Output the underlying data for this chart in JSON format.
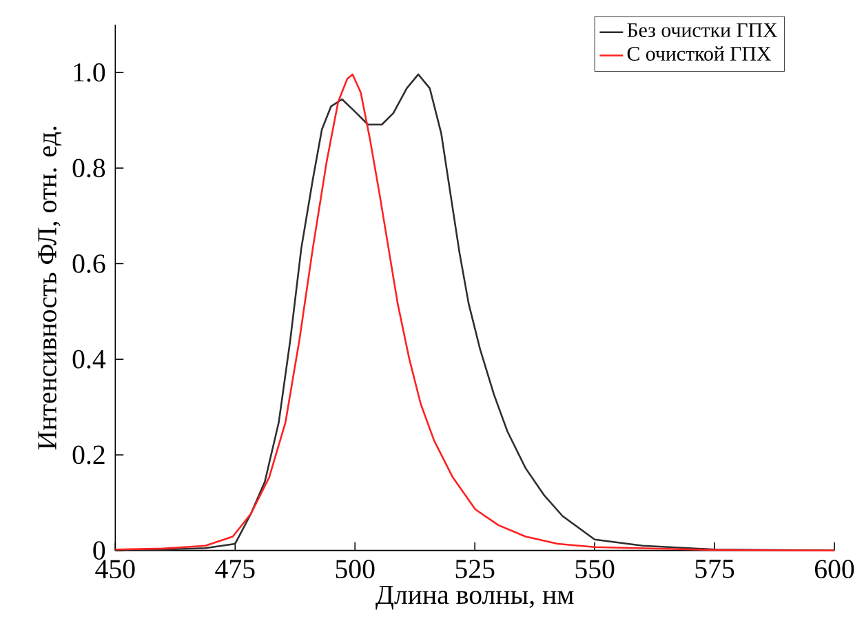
{
  "chart_data": {
    "type": "line",
    "xlabel": "Длина волны, нм",
    "ylabel": "Интенсивность ФЛ, отн. ед.",
    "xlim": [
      450,
      600
    ],
    "ylim": [
      0,
      1.1
    ],
    "xticks": [
      450,
      475,
      500,
      525,
      550,
      575,
      600
    ],
    "yticks": [
      0,
      0.2,
      0.4,
      0.6,
      0.8,
      {
        "value": 1,
        "label": "1.0"
      }
    ],
    "grid": false,
    "legend": "top right",
    "marker": "none",
    "line_style": "solid",
    "series": [
      {
        "name": "Без очистки ГПХ",
        "color": "#2e2e2e",
        "x": [
          450,
          460,
          468.8,
          475,
          478.3,
          481.2,
          484.1,
          486.5,
          488.8,
          491.2,
          493.1,
          495,
          497.3,
          499.8,
          502.7,
          505.6,
          508,
          510.8,
          513.2,
          515.6,
          518,
          519.9,
          521.8,
          523.7,
          526.1,
          529,
          531.8,
          535.6,
          539.5,
          543.3,
          550,
          560,
          575,
          600
        ],
        "values": [
          0.002,
          0.002,
          0.005,
          0.014,
          0.077,
          0.144,
          0.268,
          0.44,
          0.632,
          0.776,
          0.881,
          0.929,
          0.944,
          0.92,
          0.891,
          0.891,
          0.915,
          0.967,
          0.996,
          0.967,
          0.872,
          0.747,
          0.623,
          0.517,
          0.421,
          0.326,
          0.249,
          0.172,
          0.115,
          0.072,
          0.023,
          0.01,
          0.002,
          0
        ]
      },
      {
        "name": "С очисткой ГПХ",
        "color": "#ff2020",
        "x": [
          450,
          460,
          468.8,
          474.5,
          478.3,
          482.1,
          485.5,
          488.4,
          491.2,
          494.1,
          496.5,
          498.4,
          499.5,
          501.2,
          503.1,
          505.1,
          507,
          508.9,
          511.3,
          513.7,
          516.5,
          520.4,
          525.1,
          529.9,
          535.6,
          542.3,
          550,
          575,
          600
        ],
        "values": [
          0.002,
          0.004,
          0.01,
          0.029,
          0.077,
          0.153,
          0.268,
          0.44,
          0.632,
          0.814,
          0.939,
          0.987,
          0.996,
          0.958,
          0.862,
          0.747,
          0.632,
          0.517,
          0.402,
          0.307,
          0.23,
          0.153,
          0.086,
          0.053,
          0.029,
          0.014,
          0.007,
          0.001,
          0
        ]
      }
    ]
  }
}
